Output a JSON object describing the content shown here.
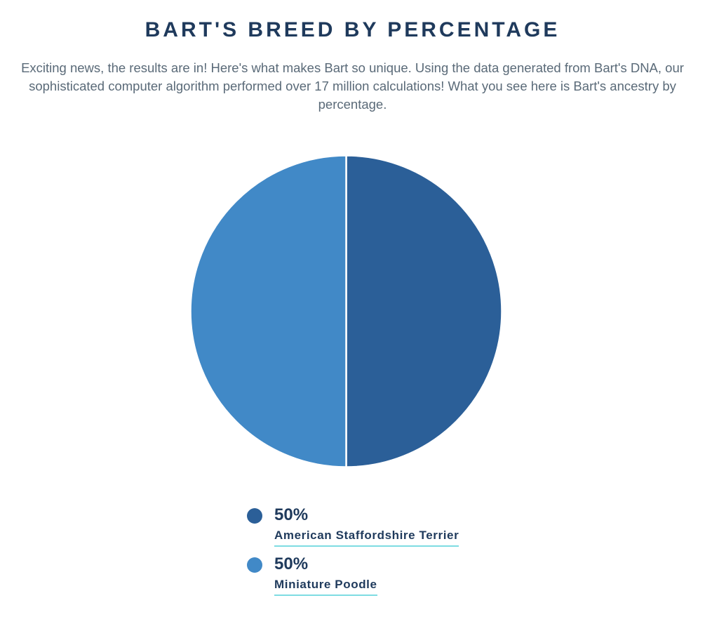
{
  "page": {
    "title": "BART'S BREED BY PERCENTAGE",
    "description": "Exciting news, the results are in! Here's what makes Bart so unique. Using the data generated from Bart's DNA, our sophisticated computer algorithm performed over 17 million calculations! What you see here is Bart's ancestry by percentage."
  },
  "chart_data": {
    "type": "pie",
    "title": "BART'S BREED BY PERCENTAGE",
    "slices": [
      {
        "label": "American Staffordshire Terrier",
        "value": 50,
        "display": "50%",
        "color": "#2B5F98"
      },
      {
        "label": "Miniature Poodle",
        "value": 50,
        "display": "50%",
        "color": "#4189C7"
      }
    ],
    "start_angle_deg": 0,
    "direction": "clockwise",
    "divider_color": "#FFFFFF",
    "legend_position": "bottom"
  },
  "colors": {
    "title_text": "#1F3A5C",
    "body_text": "#5A6A78",
    "legend_underline": "#7EDCE2",
    "background": "#FFFFFF"
  }
}
